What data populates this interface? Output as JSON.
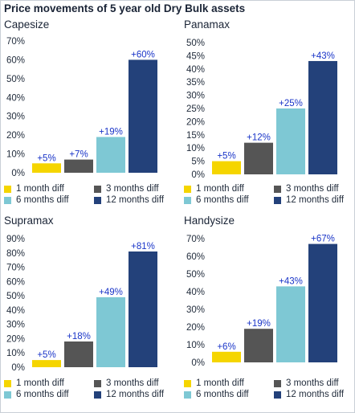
{
  "title": "Price movements of 5 year old Dry Bulk assets",
  "colors": {
    "1 month diff": "#f5d500",
    "3 months diff": "#555555",
    "6 months diff": "#7ec8d4",
    "12 months diff": "#23417a",
    "data_label": "#1a35c8",
    "axis_text": "#1f2a3a"
  },
  "legend": [
    "1 month diff",
    "3 months diff",
    "6 months diff",
    "12 months diff"
  ],
  "chart_data": [
    {
      "type": "bar",
      "title": "Capesize",
      "categories": [
        "1 month diff",
        "3 months diff",
        "6 months diff",
        "12 months diff"
      ],
      "values": [
        5,
        7,
        19,
        60
      ],
      "data_labels": [
        "+5%",
        "+7%",
        "+19%",
        "+60%"
      ],
      "yticks": [
        "0%",
        "10%",
        "20%",
        "30%",
        "40%",
        "50%",
        "60%",
        "70%"
      ],
      "ylim": [
        0,
        70
      ],
      "xlabel": "",
      "ylabel": "",
      "grid": false,
      "legend_position": "bottom"
    },
    {
      "type": "bar",
      "title": "Panamax",
      "categories": [
        "1 month diff",
        "3 months diff",
        "6 months diff",
        "12 months diff"
      ],
      "values": [
        5,
        12,
        25,
        43
      ],
      "data_labels": [
        "+5%",
        "+12%",
        "+25%",
        "+43%"
      ],
      "yticks": [
        "0%",
        "5%",
        "10%",
        "15%",
        "20%",
        "25%",
        "30%",
        "35%",
        "40%",
        "45%",
        "50%"
      ],
      "ylim": [
        0,
        50
      ],
      "xlabel": "",
      "ylabel": "",
      "grid": false,
      "legend_position": "bottom"
    },
    {
      "type": "bar",
      "title": "Supramax",
      "categories": [
        "1 month diff",
        "3 months diff",
        "6 months diff",
        "12 months diff"
      ],
      "values": [
        5,
        18,
        49,
        81
      ],
      "data_labels": [
        "+5%",
        "+18%",
        "+49%",
        "+81%"
      ],
      "yticks": [
        "0%",
        "10%",
        "20%",
        "30%",
        "40%",
        "50%",
        "60%",
        "70%",
        "80%",
        "90%"
      ],
      "ylim": [
        0,
        90
      ],
      "xlabel": "",
      "ylabel": "",
      "grid": false,
      "legend_position": "bottom"
    },
    {
      "type": "bar",
      "title": "Handysize",
      "categories": [
        "1 month diff",
        "3 months diff",
        "6 months diff",
        "12 months diff"
      ],
      "values": [
        6,
        19,
        43,
        67
      ],
      "data_labels": [
        "+6%",
        "+19%",
        "+43%",
        "+67%"
      ],
      "yticks": [
        "0%",
        "10%",
        "20%",
        "30%",
        "40%",
        "50%",
        "60%",
        "70%"
      ],
      "ylim": [
        0,
        70
      ],
      "xlabel": "",
      "ylabel": "",
      "grid": false,
      "legend_position": "bottom"
    }
  ]
}
